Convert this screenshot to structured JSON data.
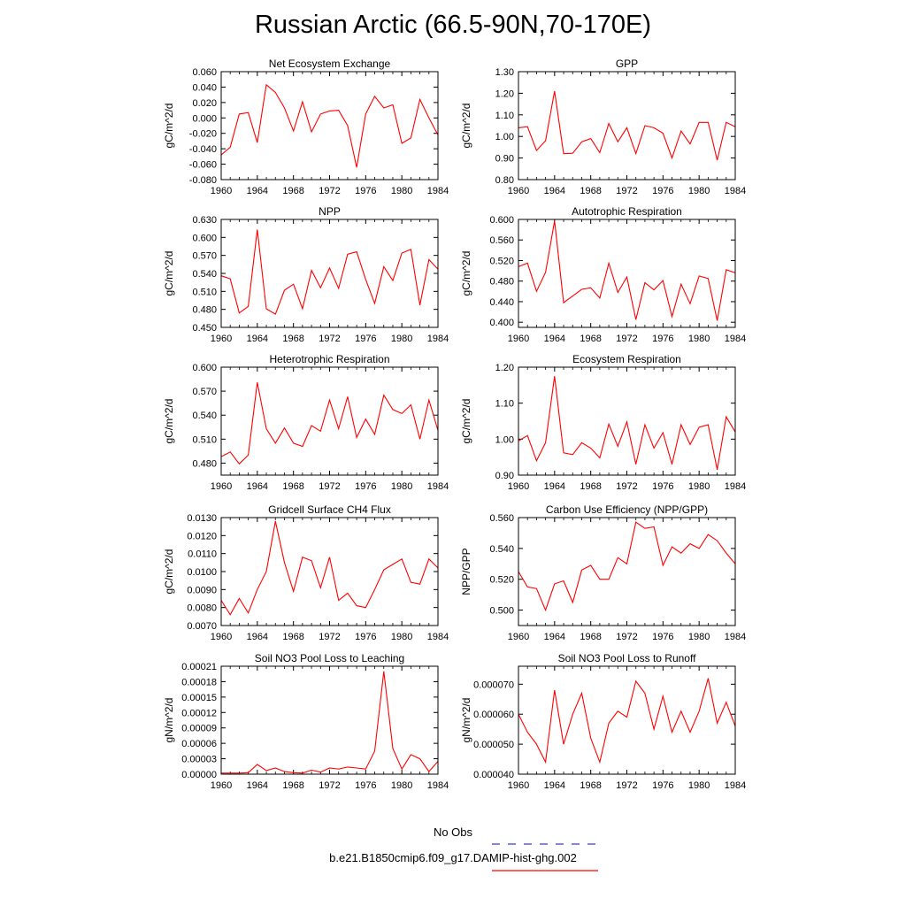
{
  "title": "Russian Arctic (66.5-90N,70-170E)",
  "colors": {
    "series": "#ff0000",
    "obs": "#3b3bd6",
    "axis": "#000000"
  },
  "legend": {
    "obs_label": "No Obs",
    "model_label": "b.e21.B1850cmip6.f09_g17.DAMIP-hist-ghg.002"
  },
  "chart_data": [
    {
      "type": "line",
      "title": "Net Ecosystem Exchange",
      "ylabel": "gC/m^2/d",
      "xlim": [
        1960,
        1984
      ],
      "ylim": [
        -0.08,
        0.06
      ],
      "xticks": [
        "1960",
        "1964",
        "1968",
        "1972",
        "1976",
        "1980",
        "1984"
      ],
      "yticks": [
        "-0.080",
        "-0.060",
        "-0.040",
        "-0.020",
        "0.000",
        "0.020",
        "0.040",
        "0.060"
      ],
      "x": [
        1960,
        1961,
        1962,
        1963,
        1964,
        1965,
        1966,
        1967,
        1968,
        1969,
        1970,
        1971,
        1972,
        1973,
        1974,
        1975,
        1976,
        1977,
        1978,
        1979,
        1980,
        1981,
        1982,
        1983,
        1984
      ],
      "values": [
        -0.048,
        -0.038,
        0.005,
        0.007,
        -0.032,
        0.043,
        0.033,
        0.013,
        -0.017,
        0.021,
        -0.018,
        0.005,
        0.009,
        0.01,
        -0.01,
        -0.064,
        0.005,
        0.028,
        0.013,
        0.017,
        -0.033,
        -0.026,
        0.024,
        0.0,
        -0.022
      ]
    },
    {
      "type": "line",
      "title": "GPP",
      "ylabel": "gC/m^2/d",
      "xlim": [
        1960,
        1984
      ],
      "ylim": [
        0.8,
        1.3
      ],
      "xticks": [
        "1960",
        "1964",
        "1968",
        "1972",
        "1976",
        "1980",
        "1984"
      ],
      "yticks": [
        "0.80",
        "0.90",
        "1.00",
        "1.10",
        "1.20",
        "1.30"
      ],
      "x": [
        1960,
        1961,
        1962,
        1963,
        1964,
        1965,
        1966,
        1967,
        1968,
        1969,
        1970,
        1971,
        1972,
        1973,
        1974,
        1975,
        1976,
        1977,
        1978,
        1979,
        1980,
        1981,
        1982,
        1983,
        1984
      ],
      "values": [
        1.04,
        1.045,
        0.935,
        0.98,
        1.21,
        0.92,
        0.922,
        0.975,
        0.99,
        0.925,
        1.06,
        0.975,
        1.04,
        0.92,
        1.05,
        1.04,
        1.015,
        0.9,
        1.025,
        0.965,
        1.065,
        1.065,
        0.89,
        1.065,
        1.045
      ]
    },
    {
      "type": "line",
      "title": "NPP",
      "ylabel": "gC/m^2/d",
      "xlim": [
        1960,
        1984
      ],
      "ylim": [
        0.45,
        0.63
      ],
      "xticks": [
        "1960",
        "1964",
        "1968",
        "1972",
        "1976",
        "1980",
        "1984"
      ],
      "yticks": [
        "0.450",
        "0.480",
        "0.510",
        "0.540",
        "0.570",
        "0.600",
        "0.630"
      ],
      "x": [
        1960,
        1961,
        1962,
        1963,
        1964,
        1965,
        1966,
        1967,
        1968,
        1969,
        1970,
        1971,
        1972,
        1973,
        1974,
        1975,
        1976,
        1977,
        1978,
        1979,
        1980,
        1981,
        1982,
        1983,
        1984
      ],
      "values": [
        0.536,
        0.531,
        0.474,
        0.485,
        0.613,
        0.481,
        0.472,
        0.512,
        0.522,
        0.481,
        0.545,
        0.516,
        0.549,
        0.515,
        0.572,
        0.576,
        0.53,
        0.49,
        0.551,
        0.528,
        0.574,
        0.58,
        0.487,
        0.563,
        0.547
      ]
    },
    {
      "type": "line",
      "title": "Autotrophic Respiration",
      "ylabel": "gC/m^2/d",
      "xlim": [
        1960,
        1984
      ],
      "ylim": [
        0.39,
        0.6
      ],
      "xticks": [
        "1960",
        "1964",
        "1968",
        "1972",
        "1976",
        "1980",
        "1984"
      ],
      "yticks": [
        "0.400",
        "0.440",
        "0.480",
        "0.520",
        "0.560",
        "0.600"
      ],
      "x": [
        1960,
        1961,
        1962,
        1963,
        1964,
        1965,
        1966,
        1967,
        1968,
        1969,
        1970,
        1971,
        1972,
        1973,
        1974,
        1975,
        1976,
        1977,
        1978,
        1979,
        1980,
        1981,
        1982,
        1983,
        1984
      ],
      "values": [
        0.508,
        0.515,
        0.46,
        0.497,
        0.597,
        0.438,
        0.451,
        0.464,
        0.467,
        0.447,
        0.515,
        0.458,
        0.488,
        0.405,
        0.477,
        0.463,
        0.481,
        0.411,
        0.474,
        0.436,
        0.49,
        0.485,
        0.403,
        0.502,
        0.496
      ]
    },
    {
      "type": "line",
      "title": "Heterotrophic Respiration",
      "ylabel": "gC/m^2/d",
      "xlim": [
        1960,
        1984
      ],
      "ylim": [
        0.465,
        0.6
      ],
      "xticks": [
        "1960",
        "1964",
        "1968",
        "1972",
        "1976",
        "1980",
        "1984"
      ],
      "yticks": [
        "0.480",
        "0.510",
        "0.540",
        "0.570",
        "0.600"
      ],
      "x": [
        1960,
        1961,
        1962,
        1963,
        1964,
        1965,
        1966,
        1967,
        1968,
        1969,
        1970,
        1971,
        1972,
        1973,
        1974,
        1975,
        1976,
        1977,
        1978,
        1979,
        1980,
        1981,
        1982,
        1983,
        1984
      ],
      "values": [
        0.488,
        0.494,
        0.479,
        0.49,
        0.581,
        0.523,
        0.505,
        0.524,
        0.505,
        0.501,
        0.527,
        0.52,
        0.559,
        0.523,
        0.563,
        0.512,
        0.535,
        0.516,
        0.565,
        0.547,
        0.542,
        0.553,
        0.51,
        0.559,
        0.521
      ]
    },
    {
      "type": "line",
      "title": "Ecosystem Respiration",
      "ylabel": "gC/m^2/d",
      "xlim": [
        1960,
        1984
      ],
      "ylim": [
        0.9,
        1.2
      ],
      "xticks": [
        "1960",
        "1964",
        "1968",
        "1972",
        "1976",
        "1980",
        "1984"
      ],
      "yticks": [
        "0.90",
        "1.00",
        "1.10",
        "1.20"
      ],
      "x": [
        1960,
        1961,
        1962,
        1963,
        1964,
        1965,
        1966,
        1967,
        1968,
        1969,
        1970,
        1971,
        1972,
        1973,
        1974,
        1975,
        1976,
        1977,
        1978,
        1979,
        1980,
        1981,
        1982,
        1983,
        1984
      ],
      "values": [
        0.995,
        1.01,
        0.94,
        0.99,
        1.175,
        0.962,
        0.957,
        0.99,
        0.975,
        0.948,
        1.042,
        0.98,
        1.048,
        0.93,
        1.04,
        0.975,
        1.018,
        0.93,
        1.04,
        0.985,
        1.033,
        1.04,
        0.915,
        1.062,
        1.02
      ]
    },
    {
      "type": "line",
      "title": "Gridcell Surface CH4 Flux",
      "ylabel": "gC/m^2/d",
      "xlim": [
        1960,
        1984
      ],
      "ylim": [
        0.007,
        0.013
      ],
      "xticks": [
        "1960",
        "1964",
        "1968",
        "1972",
        "1976",
        "1980",
        "1984"
      ],
      "yticks": [
        "0.0070",
        "0.0080",
        "0.0090",
        "0.0100",
        "0.0110",
        "0.0120",
        "0.0130"
      ],
      "x": [
        1960,
        1961,
        1962,
        1963,
        1964,
        1965,
        1966,
        1967,
        1968,
        1969,
        1970,
        1971,
        1972,
        1973,
        1974,
        1975,
        1976,
        1977,
        1978,
        1979,
        1980,
        1981,
        1982,
        1983,
        1984
      ],
      "values": [
        0.0084,
        0.0076,
        0.0085,
        0.0077,
        0.009,
        0.01,
        0.0128,
        0.0105,
        0.0089,
        0.0108,
        0.0106,
        0.0091,
        0.0108,
        0.0084,
        0.0088,
        0.0081,
        0.008,
        0.009,
        0.0101,
        0.0104,
        0.0107,
        0.0094,
        0.0093,
        0.0107,
        0.0102
      ]
    },
    {
      "type": "line",
      "title": "Carbon Use Efficiency (NPP/GPP)",
      "ylabel": "NPP/GPP",
      "xlim": [
        1960,
        1984
      ],
      "ylim": [
        0.49,
        0.56
      ],
      "xticks": [
        "1960",
        "1964",
        "1968",
        "1972",
        "1976",
        "1980",
        "1984"
      ],
      "yticks": [
        "0.500",
        "0.520",
        "0.540",
        "0.560"
      ],
      "x": [
        1960,
        1961,
        1962,
        1963,
        1964,
        1965,
        1966,
        1967,
        1968,
        1969,
        1970,
        1971,
        1972,
        1973,
        1974,
        1975,
        1976,
        1977,
        1978,
        1979,
        1980,
        1981,
        1982,
        1983,
        1984
      ],
      "values": [
        0.525,
        0.515,
        0.514,
        0.5,
        0.517,
        0.519,
        0.505,
        0.526,
        0.529,
        0.52,
        0.52,
        0.534,
        0.53,
        0.557,
        0.553,
        0.554,
        0.529,
        0.541,
        0.537,
        0.543,
        0.54,
        0.549,
        0.545,
        0.537,
        0.53
      ]
    },
    {
      "type": "line",
      "title": "Soil NO3 Pool Loss to Leaching",
      "ylabel": "gN/m^2/d",
      "xlim": [
        1960,
        1984
      ],
      "ylim": [
        0,
        0.00021
      ],
      "xticks": [
        "1960",
        "1964",
        "1968",
        "1972",
        "1976",
        "1980",
        "1984"
      ],
      "yticks": [
        "0.00000",
        "0.00003",
        "0.00006",
        "0.00009",
        "0.00012",
        "0.00015",
        "0.00018",
        "0.00021"
      ],
      "x": [
        1960,
        1961,
        1962,
        1963,
        1964,
        1965,
        1966,
        1967,
        1968,
        1969,
        1970,
        1971,
        1972,
        1973,
        1974,
        1975,
        1976,
        1977,
        1978,
        1979,
        1980,
        1981,
        1982,
        1983,
        1984
      ],
      "values": [
        2e-06,
        2e-06,
        2e-06,
        3e-06,
        1.9e-05,
        7e-06,
        1.2e-05,
        5e-06,
        3e-06,
        2e-06,
        8e-06,
        4e-06,
        1.2e-05,
        1e-05,
        1.4e-05,
        1.2e-05,
        1e-05,
        4.5e-05,
        0.0002,
        5e-05,
        1e-05,
        3.8e-05,
        3e-05,
        5e-06,
        2.5e-05
      ]
    },
    {
      "type": "line",
      "title": "Soil NO3 Pool Loss to Runoff",
      "ylabel": "gN/m^2/d",
      "xlim": [
        1960,
        1984
      ],
      "ylim": [
        4e-05,
        7.6e-05
      ],
      "xticks": [
        "1960",
        "1964",
        "1968",
        "1972",
        "1976",
        "1980",
        "1984"
      ],
      "yticks": [
        "0.000040",
        "0.000050",
        "0.000060",
        "0.000070"
      ],
      "x": [
        1960,
        1961,
        1962,
        1963,
        1964,
        1965,
        1966,
        1967,
        1968,
        1969,
        1970,
        1971,
        1972,
        1973,
        1974,
        1975,
        1976,
        1977,
        1978,
        1979,
        1980,
        1981,
        1982,
        1983,
        1984
      ],
      "values": [
        6e-05,
        5.4e-05,
        5e-05,
        4.4e-05,
        6.8e-05,
        5e-05,
        6e-05,
        6.7e-05,
        5.2e-05,
        4.4e-05,
        5.7e-05,
        6.1e-05,
        5.9e-05,
        7.1e-05,
        6.7e-05,
        5.5e-05,
        6.6e-05,
        5.4e-05,
        6.1e-05,
        5.4e-05,
        6.1e-05,
        7.2e-05,
        5.7e-05,
        6.4e-05,
        5.6e-05
      ]
    }
  ]
}
